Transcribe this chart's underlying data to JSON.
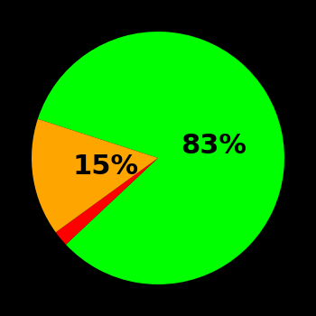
{
  "slices": [
    83,
    2,
    15
  ],
  "colors": [
    "#00ff00",
    "#ff0000",
    "#ffa500"
  ],
  "labels": [
    "83%",
    "",
    "15%"
  ],
  "background_color": "#000000",
  "startangle": 162,
  "label_fontsize": 22,
  "label_fontweight": "bold",
  "label_radii": [
    0.45,
    0,
    0.42
  ]
}
